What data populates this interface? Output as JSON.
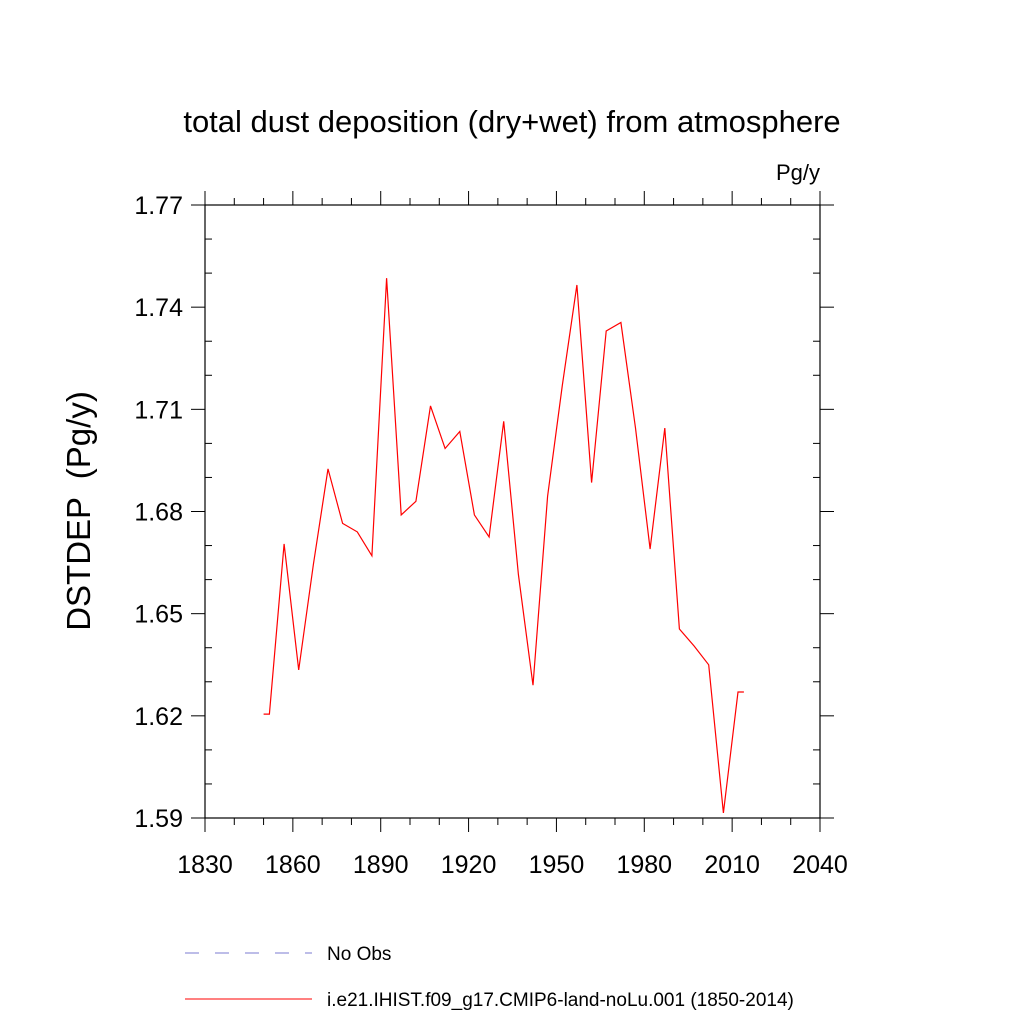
{
  "chart_data": {
    "type": "line",
    "title": "total dust deposition (dry+wet) from atmosphere",
    "units_label": "Pg/y",
    "ylabel": "DSTDEP  (Pg/y)",
    "xlabel": "",
    "xlim": [
      1830,
      2040
    ],
    "ylim": [
      1.59,
      1.77
    ],
    "x_ticks": [
      1830,
      1860,
      1890,
      1920,
      1950,
      1980,
      2010,
      2040
    ],
    "x_tick_labels": [
      "1830",
      "1860",
      "1890",
      "1920",
      "1950",
      "1980",
      "2010",
      "2040"
    ],
    "y_ticks": [
      1.59,
      1.62,
      1.65,
      1.68,
      1.71,
      1.74,
      1.77
    ],
    "y_tick_labels": [
      "1.59",
      "1.62",
      "1.65",
      "1.68",
      "1.71",
      "1.74",
      "1.77"
    ],
    "grid": false,
    "legend_position": "bottom",
    "series": [
      {
        "name": "No Obs",
        "color": "#7b7bd1",
        "dash": "dashed",
        "x": [],
        "y": []
      },
      {
        "name": "i.e21.IHIST.f09_g17.CMIP6-land-noLu.001 (1850-2014)",
        "color": "#ff0000",
        "dash": "solid",
        "x": [
          1850,
          1852,
          1857,
          1862,
          1867,
          1872,
          1877,
          1882,
          1887,
          1892,
          1897,
          1902,
          1907,
          1912,
          1917,
          1922,
          1927,
          1932,
          1937,
          1942,
          1947,
          1952,
          1957,
          1962,
          1967,
          1972,
          1977,
          1982,
          1987,
          1992,
          1997,
          2002,
          2007,
          2012,
          2014
        ],
        "y": [
          1.6205,
          1.6205,
          1.6705,
          1.6335,
          1.6645,
          1.6925,
          1.6765,
          1.674,
          1.667,
          1.7485,
          1.679,
          1.683,
          1.711,
          1.6985,
          1.7035,
          1.679,
          1.6725,
          1.7065,
          1.6615,
          1.629,
          1.6845,
          1.717,
          1.7465,
          1.6885,
          1.733,
          1.7355,
          1.7045,
          1.669,
          1.7045,
          1.6455,
          1.6405,
          1.635,
          1.5915,
          1.627,
          1.627
        ]
      }
    ]
  }
}
